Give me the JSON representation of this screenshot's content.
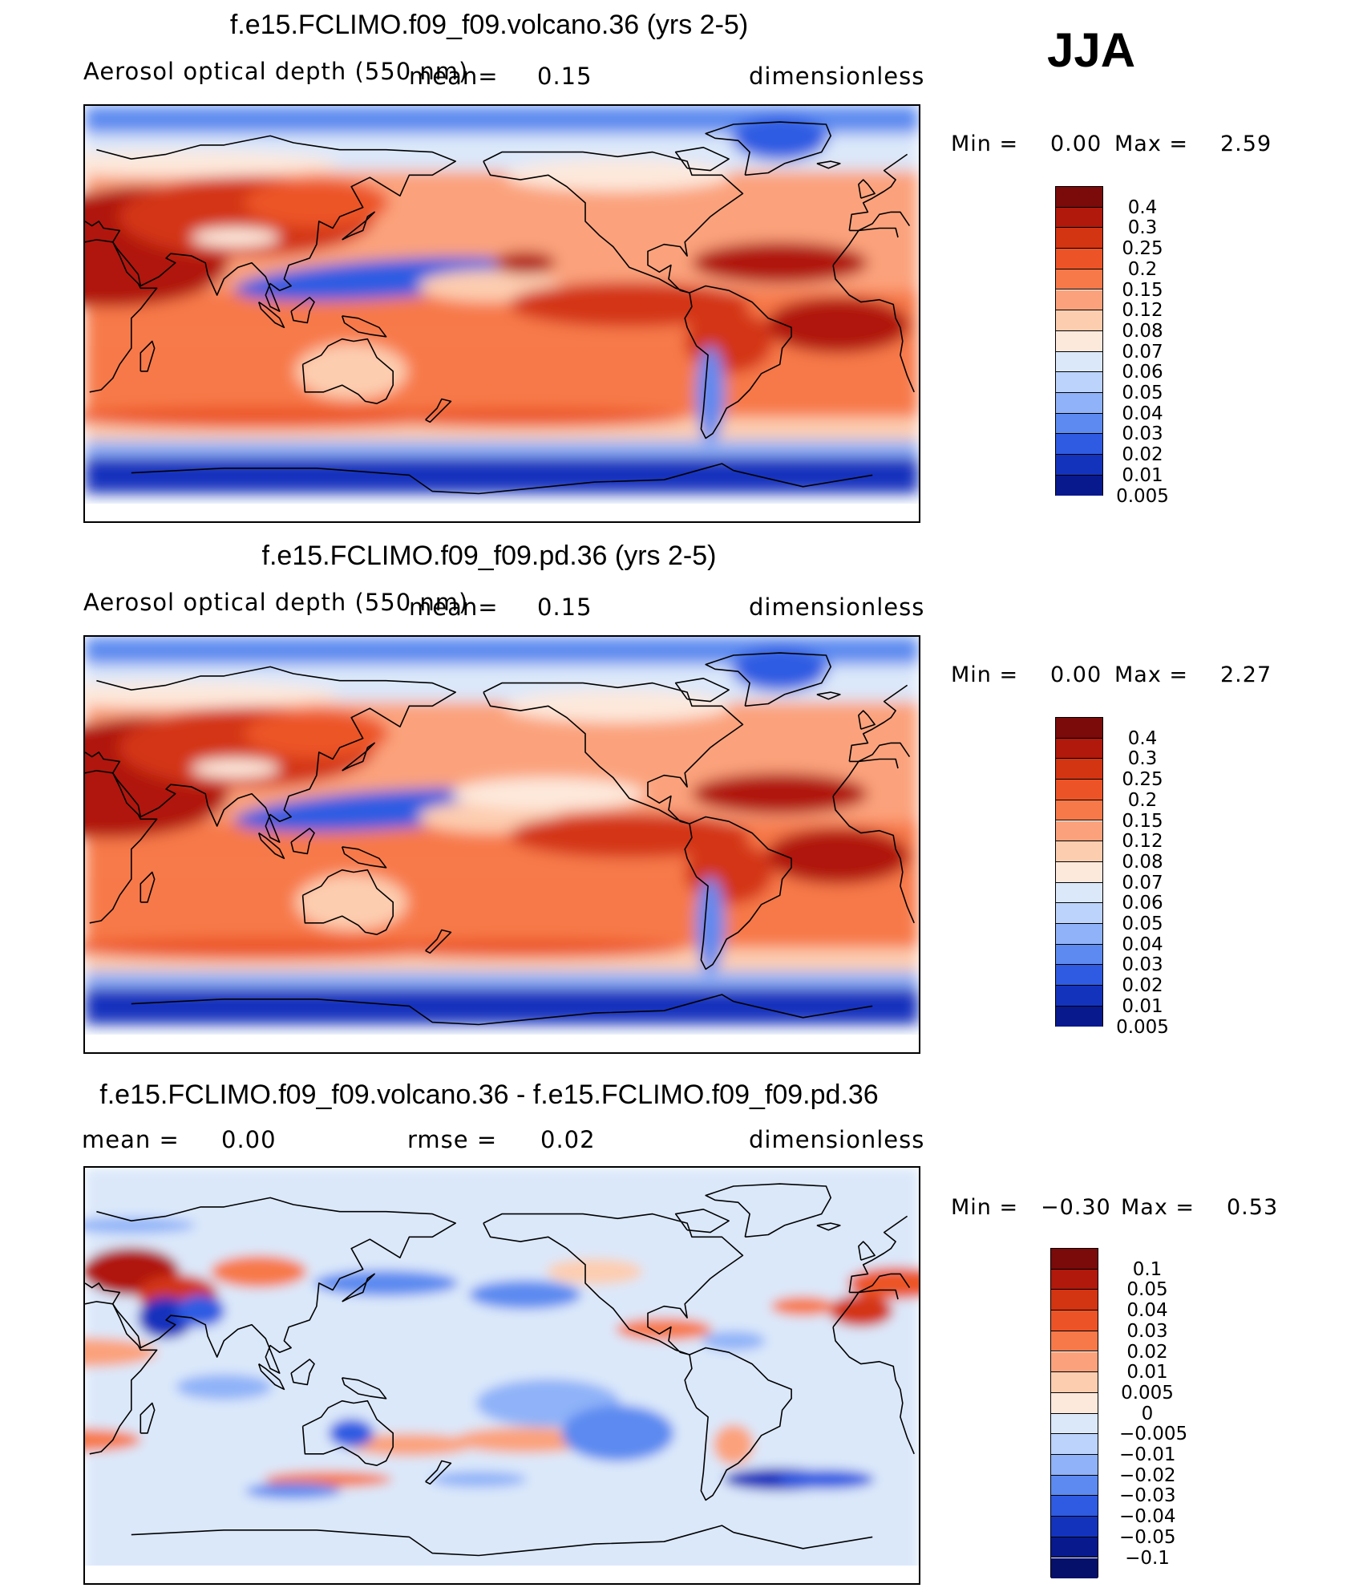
{
  "season": "JJA",
  "panels": [
    {
      "title": "f.e15.FCLIMO.f09_f09.volcano.36 (yrs 2-5)",
      "left_label": "Aerosol optical depth (550 nm)",
      "mean_label": "mean=",
      "mean_value": "0.15",
      "units": "dimensionless",
      "min_label": "Min =",
      "min_value": "0.00",
      "max_label": "Max =",
      "max_value": "2.59",
      "colorbar_labels": [
        "0.4",
        "0.3",
        "0.25",
        "0.2",
        "0.15",
        "0.12",
        "0.08",
        "0.07",
        "0.06",
        "0.05",
        "0.04",
        "0.03",
        "0.02",
        "0.01",
        "0.005"
      ],
      "colorbar_colors": [
        "#7b0a0a",
        "#b0190b",
        "#d33412",
        "#ec5428",
        "#f7794a",
        "#fba27c",
        "#fdcdb0",
        "#fde9dc",
        "#dbe8fa",
        "#bcd3fb",
        "#8fb2f8",
        "#5c8af0",
        "#2f5be2",
        "#1433bd",
        "#08198e"
      ]
    },
    {
      "title": "f.e15.FCLIMO.f09_f09.pd.36 (yrs 2-5)",
      "left_label": "Aerosol optical depth (550 nm)",
      "mean_label": "mean=",
      "mean_value": "0.15",
      "units": "dimensionless",
      "min_label": "Min =",
      "min_value": "0.00",
      "max_label": "Max =",
      "max_value": "2.27",
      "colorbar_labels": [
        "0.4",
        "0.3",
        "0.25",
        "0.2",
        "0.15",
        "0.12",
        "0.08",
        "0.07",
        "0.06",
        "0.05",
        "0.04",
        "0.03",
        "0.02",
        "0.01",
        "0.005"
      ],
      "colorbar_colors": [
        "#7b0a0a",
        "#b0190b",
        "#d33412",
        "#ec5428",
        "#f7794a",
        "#fba27c",
        "#fdcdb0",
        "#fde9dc",
        "#dbe8fa",
        "#bcd3fb",
        "#8fb2f8",
        "#5c8af0",
        "#2f5be2",
        "#1433bd",
        "#08198e"
      ]
    },
    {
      "title": "f.e15.FCLIMO.f09_f09.volcano.36 - f.e15.FCLIMO.f09_f09.pd.36",
      "mean_label": "mean =",
      "mean_value": "0.00",
      "rmse_label": "rmse =",
      "rmse_value": "0.02",
      "units": "dimensionless",
      "min_label": "Min =",
      "min_value": "−0.30",
      "max_label": "Max =",
      "max_value": "0.53",
      "colorbar_labels": [
        "0.1",
        "0.05",
        "0.04",
        "0.03",
        "0.02",
        "0.01",
        "0.005",
        "0",
        "−0.005",
        "−0.01",
        "−0.02",
        "−0.03",
        "−0.04",
        "−0.05",
        "−0.1"
      ],
      "colorbar_colors": [
        "#7b0a0a",
        "#b0190b",
        "#d33412",
        "#ec5428",
        "#f7794a",
        "#fba27c",
        "#fdcdb0",
        "#fde9dc",
        "#dbe8fa",
        "#bcd3fb",
        "#8fb2f8",
        "#5c8af0",
        "#2f5be2",
        "#1433bd",
        "#08198e",
        "#04106a"
      ]
    }
  ]
}
